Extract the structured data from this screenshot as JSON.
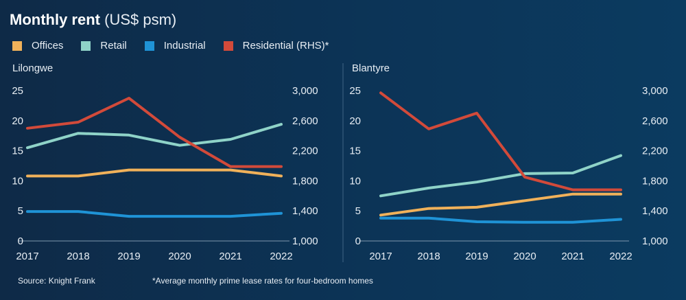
{
  "title": {
    "bold": "Monthly rent",
    "light": "(US$ psm)"
  },
  "legend": [
    {
      "label": "Offices",
      "color": "#f0b15a"
    },
    {
      "label": "Retail",
      "color": "#8fd3c8"
    },
    {
      "label": "Industrial",
      "color": "#1f93d6"
    },
    {
      "label": "Residential (RHS)*",
      "color": "#d24a3a"
    }
  ],
  "footer": {
    "source": "Source: Knight Frank",
    "note": "*Average monthly prime lease rates for four-bedroom homes"
  },
  "chart_data": [
    {
      "type": "line",
      "title": "Lilongwe",
      "x": [
        "2017",
        "2018",
        "2019",
        "2020",
        "2021",
        "2022"
      ],
      "ylim": [
        0,
        25
      ],
      "y_ticks": [
        "0",
        "5",
        "10",
        "15",
        "20",
        "25"
      ],
      "y2lim": [
        1000,
        3000
      ],
      "y2_ticks": [
        "1,000",
        "1,400",
        "1,800",
        "2,200",
        "2,600",
        "3,000"
      ],
      "series": [
        {
          "name": "Offices",
          "axis": "left",
          "color": "#f0b15a",
          "values": [
            10.8,
            10.8,
            11.8,
            11.8,
            11.8,
            10.8
          ]
        },
        {
          "name": "Retail",
          "axis": "left",
          "color": "#8fd3c8",
          "values": [
            15.5,
            17.9,
            17.6,
            15.9,
            16.9,
            19.4
          ]
        },
        {
          "name": "Industrial",
          "axis": "left",
          "color": "#1f93d6",
          "values": [
            4.9,
            4.9,
            4.1,
            4.1,
            4.1,
            4.6
          ]
        },
        {
          "name": "Residential (RHS)",
          "axis": "right",
          "color": "#d24a3a",
          "values": [
            2500,
            2580,
            2900,
            2380,
            1990,
            1990
          ]
        }
      ]
    },
    {
      "type": "line",
      "title": "Blantyre",
      "x": [
        "2017",
        "2018",
        "2019",
        "2020",
        "2021",
        "2022"
      ],
      "ylim": [
        0,
        25
      ],
      "y_ticks": [
        "0",
        "5",
        "10",
        "15",
        "20",
        "25"
      ],
      "y2lim": [
        1000,
        3000
      ],
      "y2_ticks": [
        "1,000",
        "1,400",
        "1,800",
        "2,200",
        "2,600",
        "3,000"
      ],
      "series": [
        {
          "name": "Offices",
          "axis": "left",
          "color": "#f0b15a",
          "values": [
            4.3,
            5.4,
            5.6,
            6.7,
            7.8,
            7.8
          ]
        },
        {
          "name": "Retail",
          "axis": "left",
          "color": "#8fd3c8",
          "values": [
            7.5,
            8.8,
            9.8,
            11.2,
            11.3,
            14.2
          ]
        },
        {
          "name": "Industrial",
          "axis": "left",
          "color": "#1f93d6",
          "values": [
            3.8,
            3.8,
            3.2,
            3.1,
            3.1,
            3.6
          ]
        },
        {
          "name": "Residential (RHS)",
          "axis": "right",
          "color": "#d24a3a",
          "values": [
            2970,
            2490,
            2700,
            1850,
            1680,
            1680
          ]
        }
      ]
    }
  ]
}
